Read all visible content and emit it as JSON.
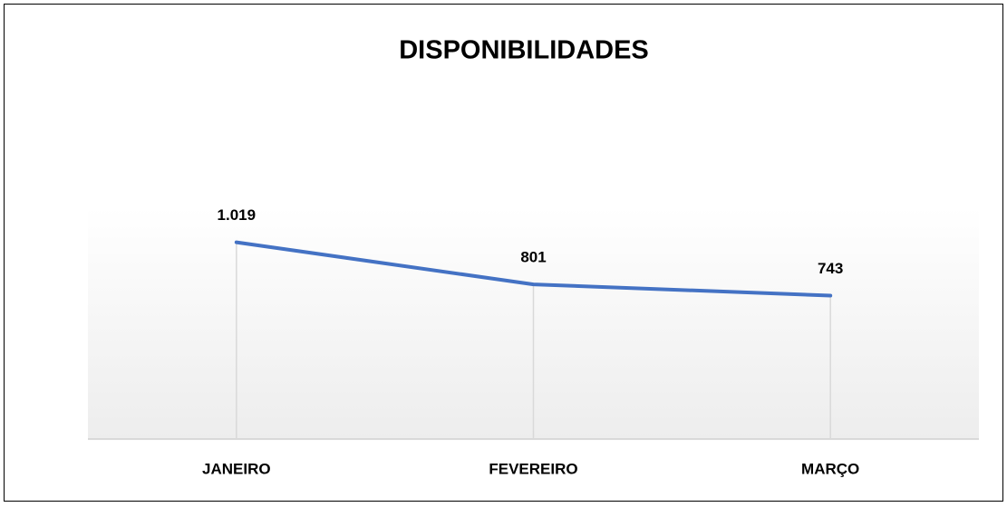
{
  "chart_data": {
    "type": "line",
    "title": "DISPONIBILIDADES",
    "categories": [
      "JANEIRO",
      "FEVEREIRO",
      "MARÇO"
    ],
    "series": [
      {
        "name": "DISPONIBILIDADES",
        "color": "#4472c4",
        "values": [
          1019,
          801,
          743
        ],
        "value_labels": [
          "1.019",
          "801",
          "743"
        ]
      }
    ],
    "ylim": [
      0,
      1200
    ],
    "drop_lines": true
  }
}
